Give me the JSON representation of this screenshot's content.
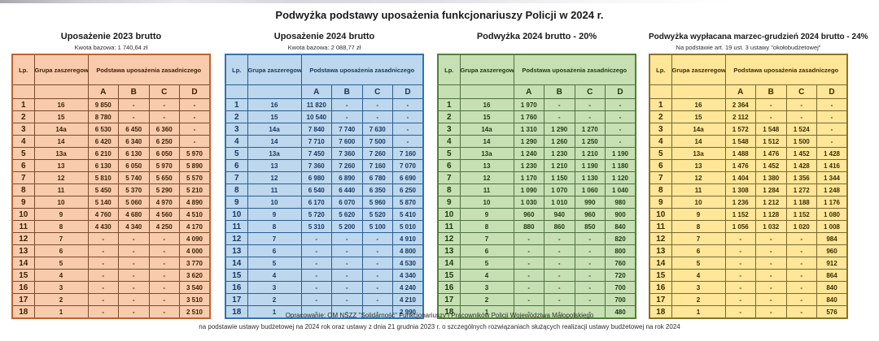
{
  "page": {
    "title": "Podwyżka podstawy uposażenia funkcjonariuszy Policji w 2024 r.",
    "footer_line1": "Opracowanie: OM NSZZ \"Solidarność\" Funkcjonariuszy i Pracowników Policji Województwa Małopolskiego",
    "footer_line2": "na podstawie ustawy budżetowej na 2024 rok oraz ustawy z dnia 21 grudnia 2023 r. o szczególnych rozwiązaniach służących realizacji ustawy budżetowej na rok 2024"
  },
  "columns": {
    "lp": "Lp.",
    "grupa": "Grupa zaszeregowania",
    "podstawa": "Podstawa uposażenia zasadniczego",
    "subcols": [
      "A",
      "B",
      "C",
      "D"
    ]
  },
  "tables": [
    {
      "title": "Uposażenie 2023 brutto",
      "subtitle": "Kwota bazowa: 1 740,64 zł",
      "colors": {
        "fill": "#f8cbad",
        "outer": "#c0622f",
        "grid": "#7a4a2c",
        "text": "#3d1f00"
      },
      "rows": [
        [
          "1",
          "16",
          "9 850",
          "-",
          "-",
          "-"
        ],
        [
          "2",
          "15",
          "8 780",
          "-",
          "-",
          "-"
        ],
        [
          "3",
          "14a",
          "6 530",
          "6 450",
          "6 360",
          "-"
        ],
        [
          "4",
          "14",
          "6 420",
          "6 340",
          "6 250",
          "-"
        ],
        [
          "5",
          "13a",
          "6 210",
          "6 130",
          "6 050",
          "5 970"
        ],
        [
          "6",
          "13",
          "6 130",
          "6 050",
          "5 970",
          "5 890"
        ],
        [
          "7",
          "12",
          "5 810",
          "5 740",
          "5 650",
          "5 570"
        ],
        [
          "8",
          "11",
          "5 450",
          "5 370",
          "5 290",
          "5 210"
        ],
        [
          "9",
          "10",
          "5 140",
          "5 060",
          "4 970",
          "4 890"
        ],
        [
          "10",
          "9",
          "4 760",
          "4 680",
          "4 560",
          "4 510"
        ],
        [
          "11",
          "8",
          "4 430",
          "4 340",
          "4 250",
          "4 170"
        ],
        [
          "12",
          "7",
          "-",
          "-",
          "-",
          "4 090"
        ],
        [
          "13",
          "6",
          "-",
          "-",
          "-",
          "4 000"
        ],
        [
          "14",
          "5",
          "-",
          "-",
          "-",
          "3 770"
        ],
        [
          "15",
          "4",
          "-",
          "-",
          "-",
          "3 620"
        ],
        [
          "16",
          "3",
          "-",
          "-",
          "-",
          "3 540"
        ],
        [
          "17",
          "2",
          "-",
          "-",
          "-",
          "3 510"
        ],
        [
          "18",
          "1",
          "-",
          "-",
          "-",
          "2 510"
        ]
      ]
    },
    {
      "title": "Uposażenie 2024 brutto",
      "subtitle": "Kwota bazowa: 2 088,77 zł",
      "colors": {
        "fill": "#bdd7ee",
        "outer": "#2e75b6",
        "grid": "#2c5d8f",
        "text": "#17375e"
      },
      "rows": [
        [
          "1",
          "16",
          "11 820",
          "-",
          "-",
          "-"
        ],
        [
          "2",
          "15",
          "10 540",
          "-",
          "-",
          "-"
        ],
        [
          "3",
          "14a",
          "7 840",
          "7 740",
          "7 630",
          "-"
        ],
        [
          "4",
          "14",
          "7 710",
          "7 600",
          "7 500",
          "-"
        ],
        [
          "5",
          "13a",
          "7 450",
          "7 360",
          "7 260",
          "7 160"
        ],
        [
          "6",
          "13",
          "7 360",
          "7 260",
          "7 160",
          "7 070"
        ],
        [
          "7",
          "12",
          "6 980",
          "6 890",
          "6 780",
          "6 690"
        ],
        [
          "8",
          "11",
          "6 540",
          "6 440",
          "6 350",
          "6 250"
        ],
        [
          "9",
          "10",
          "6 170",
          "6 070",
          "5 960",
          "5 870"
        ],
        [
          "10",
          "9",
          "5 720",
          "5 620",
          "5 520",
          "5 410"
        ],
        [
          "11",
          "8",
          "5 310",
          "5 200",
          "5 100",
          "5 010"
        ],
        [
          "12",
          "7",
          "-",
          "-",
          "-",
          "4 910"
        ],
        [
          "13",
          "6",
          "-",
          "-",
          "-",
          "4 800"
        ],
        [
          "14",
          "5",
          "-",
          "-",
          "-",
          "4 530"
        ],
        [
          "15",
          "4",
          "-",
          "-",
          "-",
          "4 340"
        ],
        [
          "16",
          "3",
          "-",
          "-",
          "-",
          "4 240"
        ],
        [
          "17",
          "2",
          "-",
          "-",
          "-",
          "4 210"
        ],
        [
          "18",
          "1",
          "-",
          "-",
          "-",
          "2 990"
        ]
      ]
    },
    {
      "title": "Podwyżka 2024 brutto - 20%",
      "subtitle": "",
      "colors": {
        "fill": "#c6e0b4",
        "outer": "#538135",
        "grid": "#4e7040",
        "text": "#1e3a10"
      },
      "rows": [
        [
          "1",
          "16",
          "1 970",
          "-",
          "-",
          "-"
        ],
        [
          "2",
          "15",
          "1 760",
          "-",
          "-",
          "-"
        ],
        [
          "3",
          "14a",
          "1 310",
          "1 290",
          "1 270",
          "-"
        ],
        [
          "4",
          "14",
          "1 290",
          "1 260",
          "1 250",
          "-"
        ],
        [
          "5",
          "13a",
          "1 240",
          "1 230",
          "1 210",
          "1 190"
        ],
        [
          "6",
          "13",
          "1 230",
          "1 210",
          "1 190",
          "1 180"
        ],
        [
          "7",
          "12",
          "1 170",
          "1 150",
          "1 130",
          "1 120"
        ],
        [
          "8",
          "11",
          "1 090",
          "1 070",
          "1 060",
          "1 040"
        ],
        [
          "9",
          "10",
          "1 030",
          "1 010",
          "990",
          "980"
        ],
        [
          "10",
          "9",
          "960",
          "940",
          "960",
          "900"
        ],
        [
          "11",
          "8",
          "880",
          "860",
          "850",
          "840"
        ],
        [
          "12",
          "7",
          "-",
          "-",
          "-",
          "820"
        ],
        [
          "13",
          "6",
          "-",
          "-",
          "-",
          "800"
        ],
        [
          "14",
          "5",
          "-",
          "-",
          "-",
          "760"
        ],
        [
          "15",
          "4",
          "-",
          "-",
          "-",
          "720"
        ],
        [
          "16",
          "3",
          "-",
          "-",
          "-",
          "700"
        ],
        [
          "17",
          "2",
          "-",
          "-",
          "-",
          "700"
        ],
        [
          "18",
          "1",
          "-",
          "-",
          "-",
          "480"
        ]
      ]
    },
    {
      "title": "Podwyżka wypłacana marzec-grudzień 2024 brutto - 24%",
      "subtitle": "Na podstawie art. 19 ust. 3 ustawy \"okołobudżetowej\"",
      "colors": {
        "fill": "#ffe699",
        "outer": "#8a7324",
        "grid": "#77692e",
        "text": "#3a2e00"
      },
      "rows": [
        [
          "1",
          "16",
          "2 364",
          "-",
          "-",
          "-"
        ],
        [
          "2",
          "15",
          "2 112",
          "-",
          "-",
          "-"
        ],
        [
          "3",
          "14a",
          "1 572",
          "1 548",
          "1 524",
          "-"
        ],
        [
          "4",
          "14",
          "1 548",
          "1 512",
          "1 500",
          "-"
        ],
        [
          "5",
          "13a",
          "1 488",
          "1 476",
          "1 452",
          "1 428"
        ],
        [
          "6",
          "13",
          "1 476",
          "1 452",
          "1 428",
          "1 416"
        ],
        [
          "7",
          "12",
          "1 404",
          "1 380",
          "1 356",
          "1 344"
        ],
        [
          "8",
          "11",
          "1 308",
          "1 284",
          "1 272",
          "1 248"
        ],
        [
          "9",
          "10",
          "1 236",
          "1 212",
          "1 188",
          "1 176"
        ],
        [
          "10",
          "9",
          "1 152",
          "1 128",
          "1 152",
          "1 080"
        ],
        [
          "11",
          "8",
          "1 056",
          "1 032",
          "1 020",
          "1 008"
        ],
        [
          "12",
          "7",
          "-",
          "-",
          "-",
          "984"
        ],
        [
          "13",
          "6",
          "-",
          "-",
          "-",
          "960"
        ],
        [
          "14",
          "5",
          "-",
          "-",
          "-",
          "912"
        ],
        [
          "15",
          "4",
          "-",
          "-",
          "-",
          "864"
        ],
        [
          "16",
          "3",
          "-",
          "-",
          "-",
          "840"
        ],
        [
          "17",
          "2",
          "-",
          "-",
          "-",
          "840"
        ],
        [
          "18",
          "1",
          "-",
          "-",
          "-",
          "576"
        ]
      ]
    }
  ]
}
